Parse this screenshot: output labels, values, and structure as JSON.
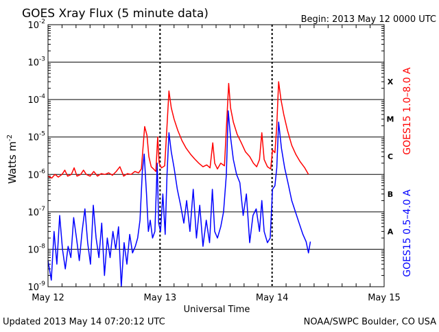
{
  "header": {
    "title": "GOES Xray Flux (5 minute data)",
    "begin_label": "Begin:  2013 May 12 0000 UTC"
  },
  "footer": {
    "updated": "Updated 2013 May 14 07:20:12 UTC",
    "credit": "NOAA/SWPC Boulder, CO USA"
  },
  "chart_data": {
    "type": "line",
    "title": "GOES Xray Flux (5 minute data)",
    "xlabel": "Universal Time",
    "ylabel": "Watts m",
    "ylabel_superscript": "-2",
    "log_scale_y": true,
    "ylim": [
      1e-09,
      0.01
    ],
    "xlim_hours": [
      0,
      72
    ],
    "x_ticks": [
      {
        "label": "May 12",
        "hour": 0
      },
      {
        "label": "May 13",
        "hour": 24
      },
      {
        "label": "May 14",
        "hour": 48
      },
      {
        "label": "May 15",
        "hour": 72
      }
    ],
    "y_ticks": [
      {
        "base": "10",
        "exp": "-9",
        "value": 1e-09
      },
      {
        "base": "10",
        "exp": "-8",
        "value": 1e-08
      },
      {
        "base": "10",
        "exp": "-7",
        "value": 1e-07
      },
      {
        "base": "10",
        "exp": "-6",
        "value": 1e-06
      },
      {
        "base": "10",
        "exp": "-5",
        "value": 1e-05
      },
      {
        "base": "10",
        "exp": "-4",
        "value": 0.0001
      },
      {
        "base": "10",
        "exp": "-3",
        "value": 0.001
      },
      {
        "base": "10",
        "exp": "-2",
        "value": 0.01
      }
    ],
    "flare_classes": [
      {
        "label": "X",
        "value": 0.0003
      },
      {
        "label": "M",
        "value": 3e-05
      },
      {
        "label": "C",
        "value": 3e-06
      },
      {
        "label": "B",
        "value": 3e-07
      },
      {
        "label": "A",
        "value": 3e-08
      }
    ],
    "grid": true,
    "series": [
      {
        "name": "GOES15 1.0–8.0 A",
        "color": "#ff0000",
        "points": [
          [
            0,
            9e-07
          ],
          [
            0.8,
            8e-07
          ],
          [
            1.5,
            1e-06
          ],
          [
            2.2,
            8.5e-07
          ],
          [
            3,
            1e-06
          ],
          [
            3.6,
            1.3e-06
          ],
          [
            4.2,
            9e-07
          ],
          [
            5,
            1e-06
          ],
          [
            5.6,
            1.5e-06
          ],
          [
            6.2,
            9e-07
          ],
          [
            7,
            1e-06
          ],
          [
            7.6,
            1.3e-06
          ],
          [
            8.2,
            1e-06
          ],
          [
            9,
            9e-07
          ],
          [
            9.8,
            1.2e-06
          ],
          [
            10.6,
            9e-07
          ],
          [
            11.4,
            1.05e-06
          ],
          [
            12.2,
            1e-06
          ],
          [
            13,
            1.1e-06
          ],
          [
            13.8,
            9.5e-07
          ],
          [
            14.6,
            1.2e-06
          ],
          [
            15.4,
            1.6e-06
          ],
          [
            16.2,
            9e-07
          ],
          [
            17,
            1.05e-06
          ],
          [
            17.8,
            1e-06
          ],
          [
            18.6,
            1.2e-06
          ],
          [
            19.4,
            1.1e-06
          ],
          [
            20,
            1.4e-06
          ],
          [
            20.7,
            1.9e-05
          ],
          [
            21.2,
            1.1e-05
          ],
          [
            21.6,
            3e-06
          ],
          [
            22.1,
            1.6e-06
          ],
          [
            22.6,
            1.4e-06
          ],
          [
            23.1,
            1.2e-06
          ],
          [
            23.5,
            1e-05
          ],
          [
            23.8,
            2e-06
          ],
          [
            24.3,
            1.5e-06
          ],
          [
            25,
            1.7e-06
          ],
          [
            25.5,
            2e-05
          ],
          [
            25.9,
            0.00017
          ],
          [
            26.4,
            6e-05
          ],
          [
            27,
            3e-05
          ],
          [
            27.8,
            1.5e-05
          ],
          [
            28.7,
            8e-06
          ],
          [
            29.6,
            5e-06
          ],
          [
            30.5,
            3.5e-06
          ],
          [
            31.4,
            2.6e-06
          ],
          [
            32.3,
            2e-06
          ],
          [
            33.2,
            1.6e-06
          ],
          [
            34,
            1.8e-06
          ],
          [
            34.7,
            1.5e-06
          ],
          [
            35.3,
            7e-06
          ],
          [
            35.7,
            2e-06
          ],
          [
            36.3,
            1.4e-06
          ],
          [
            37,
            2e-06
          ],
          [
            37.8,
            1.7e-06
          ],
          [
            38.3,
            3e-05
          ],
          [
            38.7,
            0.00027
          ],
          [
            39.1,
            6e-05
          ],
          [
            39.7,
            2.5e-05
          ],
          [
            40.5,
            1.2e-05
          ],
          [
            41.4,
            7e-06
          ],
          [
            42.3,
            4e-06
          ],
          [
            43.2,
            3e-06
          ],
          [
            44,
            2e-06
          ],
          [
            44.7,
            1.6e-06
          ],
          [
            45.3,
            2.5e-06
          ],
          [
            45.8,
            1.3e-05
          ],
          [
            46.3,
            2.5e-06
          ],
          [
            47,
            1.6e-06
          ],
          [
            47.7,
            1.4e-06
          ],
          [
            48.1,
            4.5e-06
          ],
          [
            48.6,
            3.8e-06
          ],
          [
            49,
            2e-05
          ],
          [
            49.4,
            0.0003
          ],
          [
            49.9,
            0.0001
          ],
          [
            50.5,
            4e-05
          ],
          [
            51.3,
            1.5e-05
          ],
          [
            52.2,
            6e-06
          ],
          [
            53.1,
            3.4e-06
          ],
          [
            54,
            2.2e-06
          ],
          [
            55,
            1.5e-06
          ],
          [
            55.8,
            1e-06
          ]
        ]
      },
      {
        "name": "GOES15 0.5–4.0 A",
        "color": "#0000ff",
        "points": [
          [
            0,
            5e-09
          ],
          [
            0.7,
            1.5e-09
          ],
          [
            1.3,
            3e-08
          ],
          [
            1.9,
            4e-09
          ],
          [
            2.5,
            8e-08
          ],
          [
            3.1,
            1e-08
          ],
          [
            3.7,
            3e-09
          ],
          [
            4.3,
            1.2e-08
          ],
          [
            4.9,
            6e-09
          ],
          [
            5.5,
            7e-08
          ],
          [
            6.1,
            2e-08
          ],
          [
            6.7,
            5e-09
          ],
          [
            7.3,
            3e-08
          ],
          [
            7.9,
            1.2e-07
          ],
          [
            8.5,
            1.5e-08
          ],
          [
            9.1,
            4e-09
          ],
          [
            9.7,
            1.5e-07
          ],
          [
            10.3,
            2e-08
          ],
          [
            10.9,
            6e-09
          ],
          [
            11.5,
            5e-08
          ],
          [
            12.1,
            2e-09
          ],
          [
            12.7,
            2e-08
          ],
          [
            13.3,
            6e-09
          ],
          [
            13.9,
            3e-08
          ],
          [
            14.5,
            1e-08
          ],
          [
            15.1,
            4e-08
          ],
          [
            15.7,
            1e-09
          ],
          [
            16.3,
            1.5e-08
          ],
          [
            16.9,
            4e-09
          ],
          [
            17.5,
            2.5e-08
          ],
          [
            18.1,
            8e-09
          ],
          [
            18.7,
            1.2e-08
          ],
          [
            19.2,
            2e-08
          ],
          [
            19.7,
            6e-08
          ],
          [
            20.2,
            1.2e-06
          ],
          [
            20.6,
            3.5e-06
          ],
          [
            21.1,
            3e-07
          ],
          [
            21.5,
            3e-08
          ],
          [
            21.9,
            6e-08
          ],
          [
            22.4,
            2e-08
          ],
          [
            22.9,
            3e-08
          ],
          [
            23.4,
            2e-06
          ],
          [
            23.7,
            5e-08
          ],
          [
            24.1,
            3e-08
          ],
          [
            24.6,
            3e-07
          ],
          [
            25.1,
            2.5e-08
          ],
          [
            25.5,
            1e-06
          ],
          [
            25.9,
            1.3e-05
          ],
          [
            26.4,
            4e-06
          ],
          [
            27,
            1.5e-06
          ],
          [
            27.7,
            4e-07
          ],
          [
            28.4,
            1.5e-07
          ],
          [
            29.1,
            5e-08
          ],
          [
            29.7,
            2e-07
          ],
          [
            30.4,
            3e-08
          ],
          [
            31.1,
            4e-07
          ],
          [
            31.8,
            2e-08
          ],
          [
            32.5,
            1.5e-07
          ],
          [
            33.2,
            1.2e-08
          ],
          [
            33.9,
            6e-08
          ],
          [
            34.6,
            1.5e-08
          ],
          [
            35.2,
            4e-07
          ],
          [
            35.7,
            3e-08
          ],
          [
            36.3,
            2e-08
          ],
          [
            37,
            4e-08
          ],
          [
            37.6,
            1e-07
          ],
          [
            38.2,
            1e-06
          ],
          [
            38.6,
            5e-05
          ],
          [
            39.1,
            1e-05
          ],
          [
            39.7,
            2.5e-06
          ],
          [
            40.4,
            1e-06
          ],
          [
            41.1,
            6e-07
          ],
          [
            41.8,
            8e-08
          ],
          [
            42.5,
            3e-07
          ],
          [
            43.2,
            1.5e-08
          ],
          [
            43.9,
            8e-08
          ],
          [
            44.6,
            1.2e-07
          ],
          [
            45.3,
            3e-08
          ],
          [
            45.8,
            2e-07
          ],
          [
            46.3,
            3e-08
          ],
          [
            47,
            1.5e-08
          ],
          [
            47.6,
            2e-08
          ],
          [
            48.1,
            4e-07
          ],
          [
            48.6,
            5e-07
          ],
          [
            49,
            1.5e-06
          ],
          [
            49.4,
            2.5e-05
          ],
          [
            50,
            5e-06
          ],
          [
            50.7,
            1.5e-06
          ],
          [
            51.4,
            6e-07
          ],
          [
            52.2,
            2e-07
          ],
          [
            53,
            1e-07
          ],
          [
            53.8,
            5e-08
          ],
          [
            54.6,
            2.5e-08
          ],
          [
            55.3,
            1.6e-08
          ],
          [
            55.8,
            8e-09
          ],
          [
            56.2,
            1.6e-08
          ]
        ]
      }
    ]
  }
}
